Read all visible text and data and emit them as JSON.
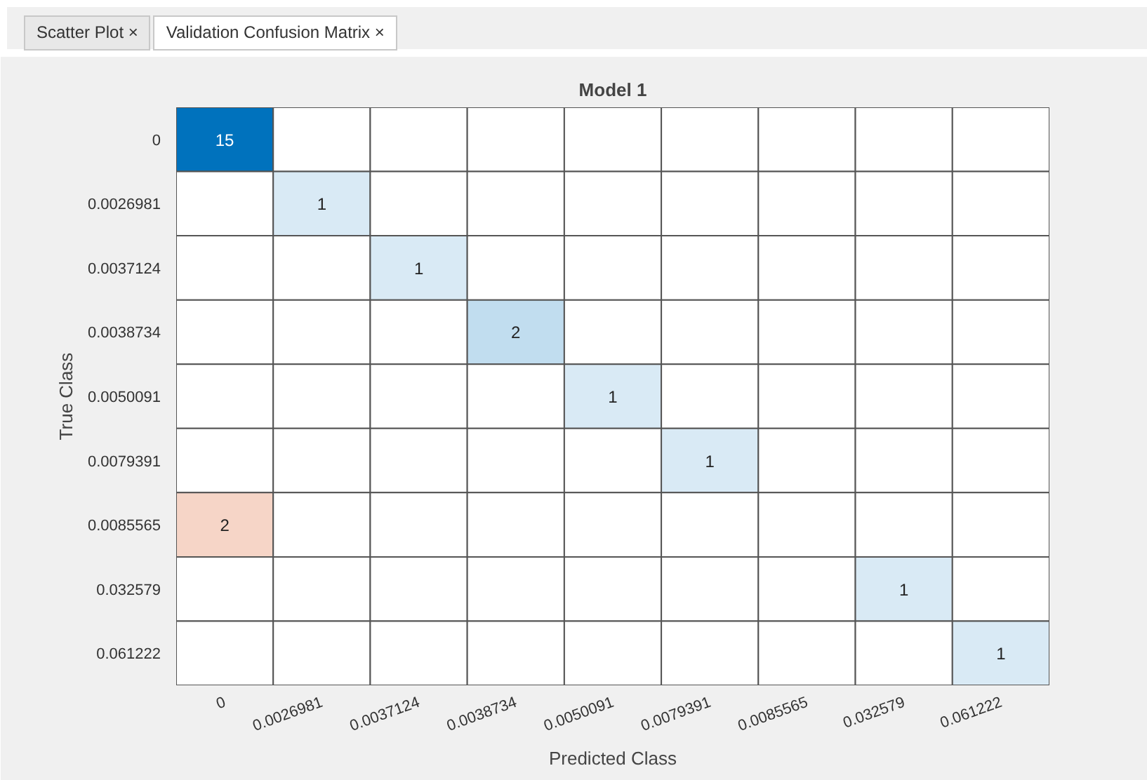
{
  "chart_data": {
    "type": "heatmap",
    "title": "Model 1",
    "xlabel": "Predicted Class",
    "ylabel": "True Class",
    "data_labels": true,
    "annotations": [
      "Scatter Plot ×",
      "Validation Confusion Matrix ×"
    ],
    "categories": [
      "0",
      "0.0026981",
      "0.0037124",
      "0.0038734",
      "0.0050091",
      "0.0079391",
      "0.0085565",
      "0.032579",
      "0.061222"
    ],
    "y_categories": [
      "0",
      "0.0026981",
      "0.0037124",
      "0.0038734",
      "0.0050091",
      "0.0079391",
      "0.0085565",
      "0.032579",
      "0.061222"
    ],
    "cells": [
      [
        15,
        null,
        null,
        null,
        null,
        null,
        null,
        null,
        null
      ],
      [
        null,
        1,
        null,
        null,
        null,
        null,
        null,
        null,
        null
      ],
      [
        null,
        null,
        1,
        null,
        null,
        null,
        null,
        null,
        null
      ],
      [
        null,
        null,
        null,
        2,
        null,
        null,
        null,
        null,
        null
      ],
      [
        null,
        null,
        null,
        null,
        1,
        null,
        null,
        null,
        null
      ],
      [
        null,
        null,
        null,
        null,
        null,
        1,
        null,
        null,
        null
      ],
      [
        2,
        null,
        null,
        null,
        null,
        null,
        null,
        null,
        null
      ],
      [
        null,
        null,
        null,
        null,
        null,
        null,
        null,
        1,
        null
      ],
      [
        null,
        null,
        null,
        null,
        null,
        null,
        null,
        null,
        1
      ]
    ]
  }
}
